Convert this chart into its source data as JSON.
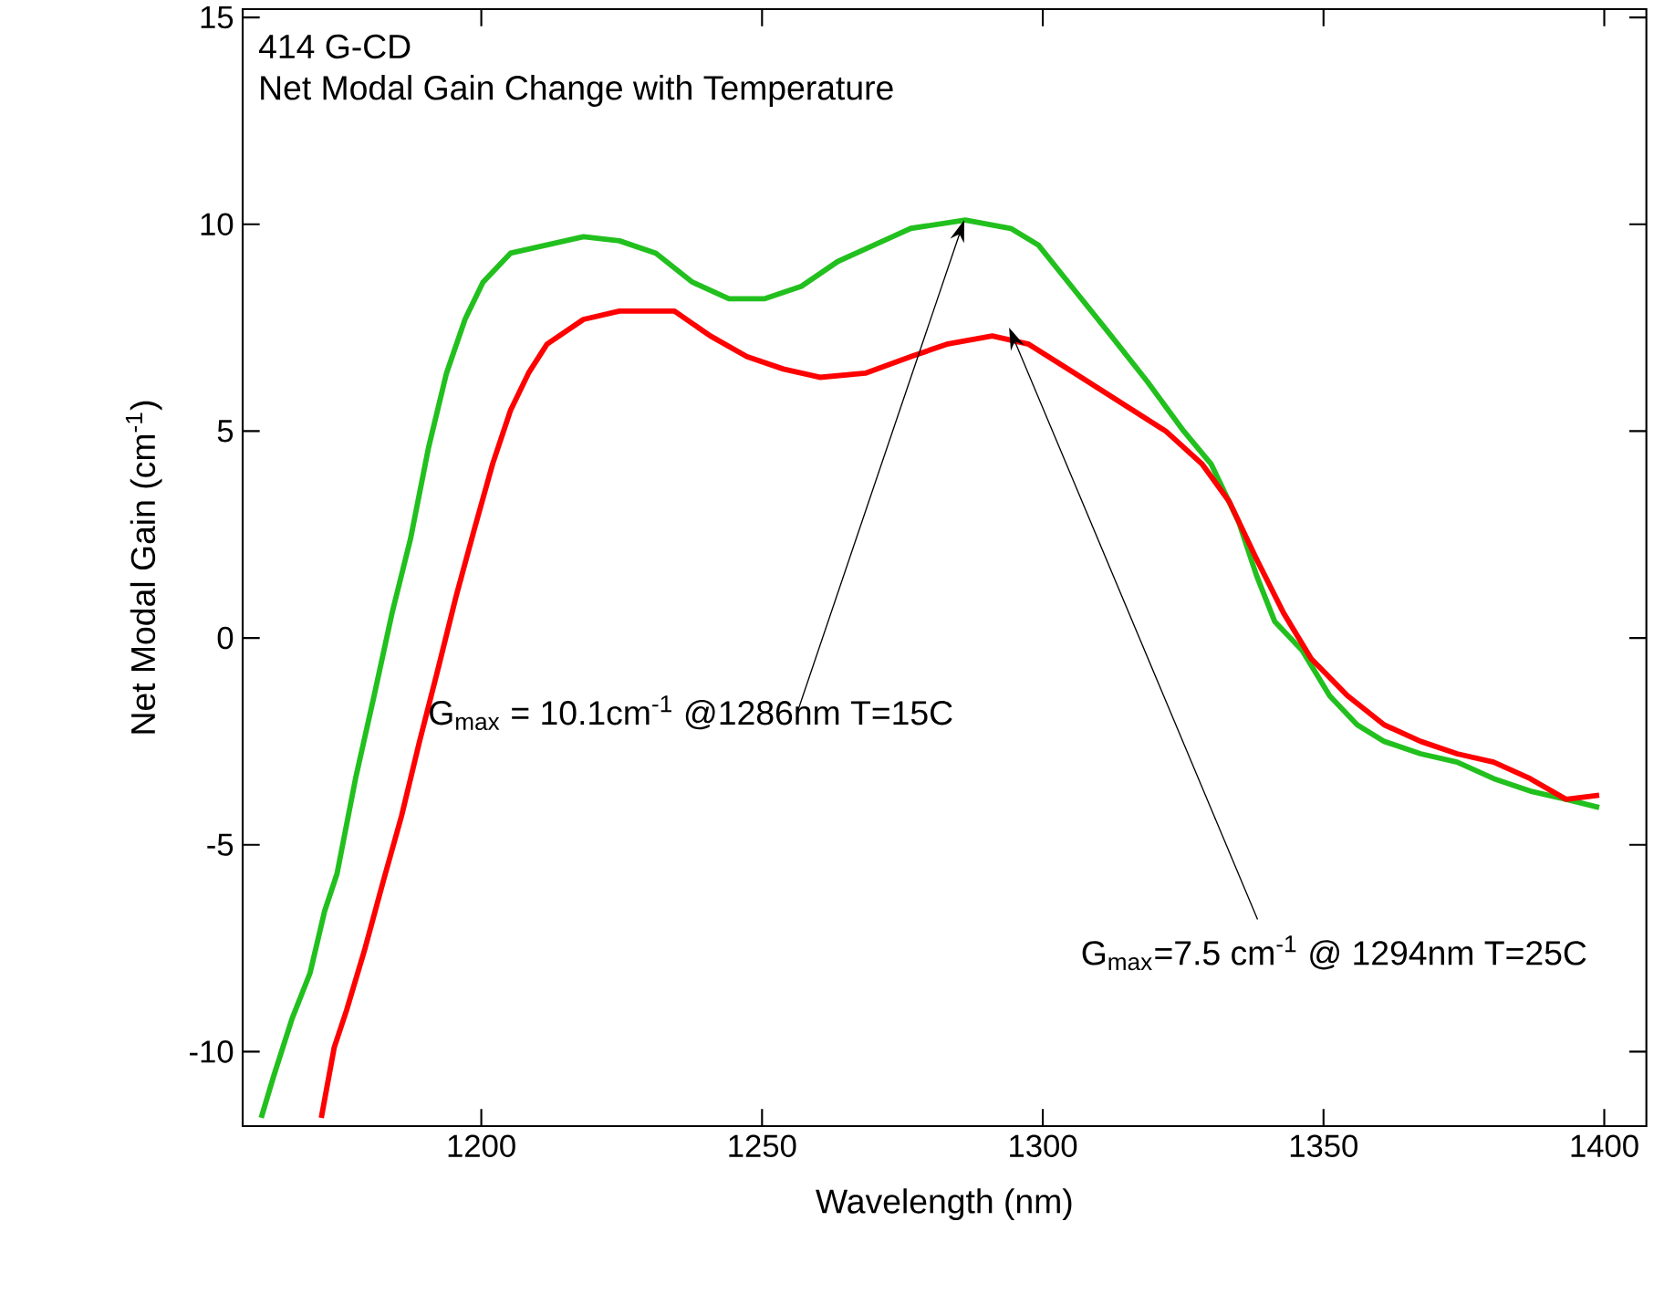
{
  "chart_data": {
    "type": "line",
    "title": "414 G-CD",
    "subtitle": "Net Modal Gain Change with Temperature",
    "xlabel": "Wavelength (nm)",
    "ylabel": "Net Modal Gain (cm$^{-1}$)",
    "xlim": [
      1157.5,
      1407.5
    ],
    "ylim": [
      -11.8,
      15.2
    ],
    "xticks": [
      1200,
      1250,
      1300,
      1350,
      1400
    ],
    "yticks": [
      -10,
      -5,
      0,
      5,
      10,
      15
    ],
    "grid": false,
    "legend": false,
    "marker": "none",
    "line_style": "solid",
    "series": [
      {
        "color": "#22c01e",
        "x": [
          1160.8,
          1163.0,
          1166.3,
          1169.5,
          1172.1,
          1174.3,
          1177.6,
          1180.9,
          1184.1,
          1187.4,
          1190.6,
          1193.8,
          1197.1,
          1200.3,
          1205.2,
          1211.7,
          1218.2,
          1224.6,
          1231.1,
          1237.6,
          1244.1,
          1250.5,
          1257.0,
          1263.5,
          1270.0,
          1276.5,
          1286.2,
          1294.3,
          1299.2,
          1305.7,
          1312.2,
          1318.6,
          1325.1,
          1330.0,
          1334.9,
          1338.1,
          1341.3,
          1346.2,
          1351.1,
          1356.0,
          1360.8,
          1367.3,
          1373.8,
          1380.3,
          1386.8,
          1393.2,
          1399.1
        ],
        "values": [
          -11.6,
          -10.6,
          -9.2,
          -8.1,
          -6.6,
          -5.7,
          -3.4,
          -1.4,
          0.6,
          2.4,
          4.6,
          6.4,
          7.7,
          8.6,
          9.3,
          9.5,
          9.7,
          9.6,
          9.3,
          8.6,
          8.2,
          8.2,
          8.5,
          9.1,
          9.5,
          9.9,
          10.1,
          9.9,
          9.5,
          8.4,
          7.3,
          6.2,
          5.0,
          4.2,
          2.8,
          1.5,
          0.4,
          -0.3,
          -1.4,
          -2.1,
          -2.5,
          -2.8,
          -3.0,
          -3.4,
          -3.7,
          -3.9,
          -4.1
        ]
      },
      {
        "color": "#ff0000",
        "x": [
          1171.5,
          1173.8,
          1176.0,
          1179.3,
          1182.5,
          1185.8,
          1189.0,
          1192.2,
          1195.5,
          1198.7,
          1202.0,
          1205.2,
          1208.4,
          1211.7,
          1218.2,
          1224.6,
          1234.4,
          1240.8,
          1247.3,
          1253.8,
          1260.3,
          1268.4,
          1276.5,
          1282.9,
          1291.0,
          1297.5,
          1305.7,
          1313.8,
          1321.9,
          1328.4,
          1333.2,
          1338.1,
          1342.9,
          1347.8,
          1354.3,
          1360.8,
          1367.3,
          1373.8,
          1380.3,
          1386.8,
          1393.2,
          1399.1
        ],
        "values": [
          -11.6,
          -9.9,
          -9.0,
          -7.5,
          -5.9,
          -4.3,
          -2.5,
          -0.8,
          1.0,
          2.6,
          4.2,
          5.5,
          6.4,
          7.1,
          7.7,
          7.9,
          7.9,
          7.3,
          6.8,
          6.5,
          6.3,
          6.4,
          6.8,
          7.1,
          7.3,
          7.1,
          6.4,
          5.7,
          5.0,
          4.2,
          3.3,
          1.9,
          0.6,
          -0.5,
          -1.4,
          -2.1,
          -2.5,
          -2.8,
          -3.0,
          -3.4,
          -3.9,
          -3.8
        ]
      }
    ],
    "annotations": [
      {
        "text": "G$_{max}$ = 10.1cm$^{-1}$ @1286nm T=15C",
        "x": 1286,
        "y": 10.1
      },
      {
        "text": "G$_{max}$=7.5 cm$^{-1}$ @ 1294nm T=25C",
        "x": 1294,
        "y": 7.5
      }
    ]
  }
}
